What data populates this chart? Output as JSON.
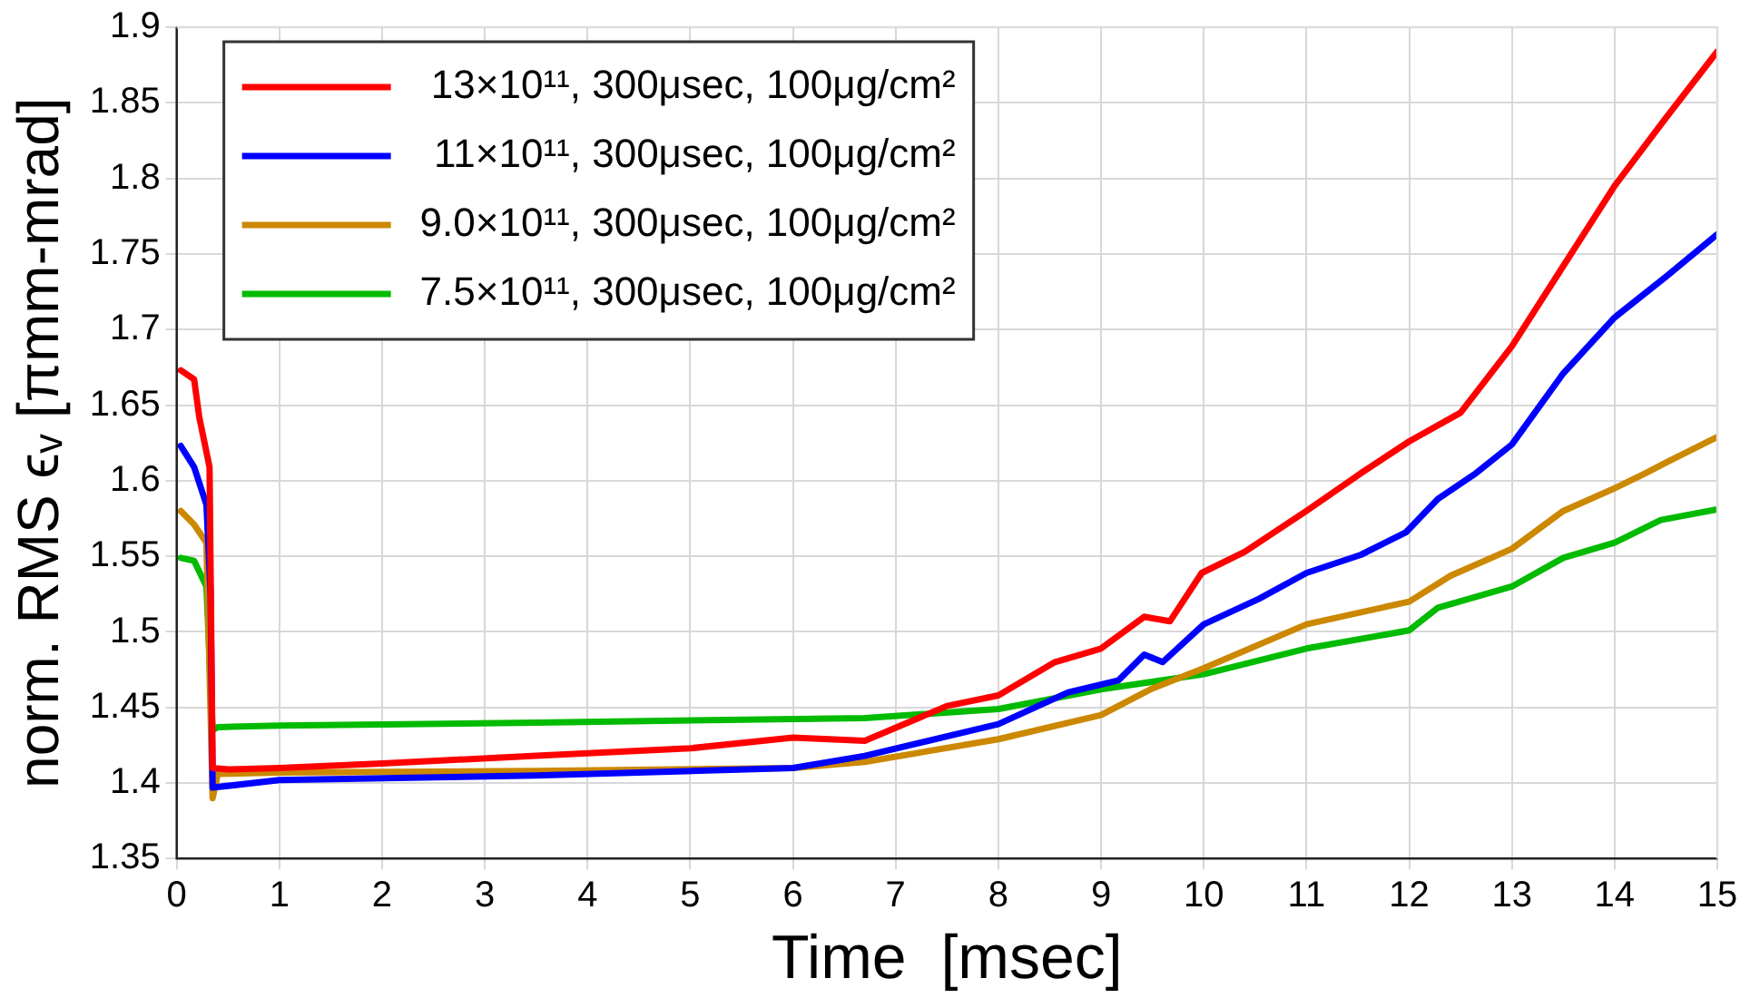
{
  "chart_data": {
    "type": "line",
    "xlabel": "Time  [msec]",
    "ylabel": "norm. RMS ϵᵥ [πmm-mrad]",
    "xlim": [
      0,
      15
    ],
    "xticks": [
      0,
      1,
      2,
      3,
      4,
      5,
      6,
      7,
      8,
      9,
      10,
      11,
      12,
      13,
      14,
      15
    ],
    "ylim": [
      1.35,
      1.9
    ],
    "yticks": [
      1.35,
      1.4,
      1.45,
      1.5,
      1.55,
      1.6,
      1.65,
      1.7,
      1.75,
      1.8,
      1.85,
      1.9
    ],
    "grid": true,
    "legend": "top left",
    "marker": "none",
    "line_style": "solid",
    "series": [
      {
        "name": "13×10¹¹, 300μsec, 100μg/cm²",
        "color": "#ff0000",
        "x": [
          0.04,
          0.17,
          0.22,
          0.32,
          0.35,
          0.5,
          1,
          2,
          3.5,
          5,
          6,
          6.7,
          7.5,
          8,
          8.55,
          9,
          9.42,
          9.67,
          9.98,
          10.4,
          11,
          11.53,
          12,
          12.5,
          13,
          13.5,
          14,
          14.5,
          15
        ],
        "values": [
          1.673,
          1.667,
          1.642,
          1.609,
          1.41,
          1.409,
          1.41,
          1.413,
          1.418,
          1.423,
          1.43,
          1.428,
          1.451,
          1.458,
          1.48,
          1.489,
          1.51,
          1.507,
          1.539,
          1.553,
          1.58,
          1.605,
          1.626,
          1.645,
          1.689,
          1.742,
          1.795,
          1.84,
          1.884
        ]
      },
      {
        "name": "11×10¹¹, 300μsec, 100μg/cm²",
        "color": "#0000ff",
        "x": [
          0.04,
          0.17,
          0.29,
          0.33,
          0.35,
          1,
          3.5,
          6,
          6.7,
          8,
          8.68,
          9.17,
          9.42,
          9.6,
          10,
          10.54,
          11,
          11.53,
          11.97,
          12.28,
          12.65,
          13,
          13.5,
          14,
          14.5,
          15
        ],
        "values": [
          1.623,
          1.609,
          1.584,
          1.526,
          1.397,
          1.402,
          1.405,
          1.41,
          1.418,
          1.439,
          1.46,
          1.468,
          1.485,
          1.48,
          1.505,
          1.522,
          1.539,
          1.551,
          1.566,
          1.588,
          1.605,
          1.624,
          1.671,
          1.708,
          1.735,
          1.763
        ]
      },
      {
        "name": "9.0×10¹¹, 300μsec, 100μg/cm²",
        "color": "#cc8800",
        "x": [
          0.04,
          0.17,
          0.29,
          0.35,
          0.4,
          1,
          3.5,
          6,
          6.7,
          8,
          9,
          9.48,
          10,
          11,
          12,
          12.4,
          13,
          13.5,
          14,
          14.3,
          14.5,
          15
        ],
        "values": [
          1.58,
          1.571,
          1.559,
          1.39,
          1.406,
          1.407,
          1.408,
          1.41,
          1.414,
          1.429,
          1.445,
          1.462,
          1.476,
          1.505,
          1.52,
          1.537,
          1.555,
          1.58,
          1.595,
          1.605,
          1.612,
          1.629
        ]
      },
      {
        "name": "7.5×10¹¹, 300μsec, 100μg/cm²",
        "color": "#00bb00",
        "x": [
          0.04,
          0.17,
          0.29,
          0.35,
          0.4,
          1,
          3.5,
          6.7,
          8,
          9,
          10,
          11,
          12,
          12.28,
          13,
          13.5,
          14,
          14.45,
          15
        ],
        "values": [
          1.549,
          1.547,
          1.53,
          1.435,
          1.437,
          1.438,
          1.44,
          1.443,
          1.449,
          1.462,
          1.472,
          1.489,
          1.501,
          1.516,
          1.53,
          1.549,
          1.559,
          1.574,
          1.581
        ]
      }
    ]
  }
}
